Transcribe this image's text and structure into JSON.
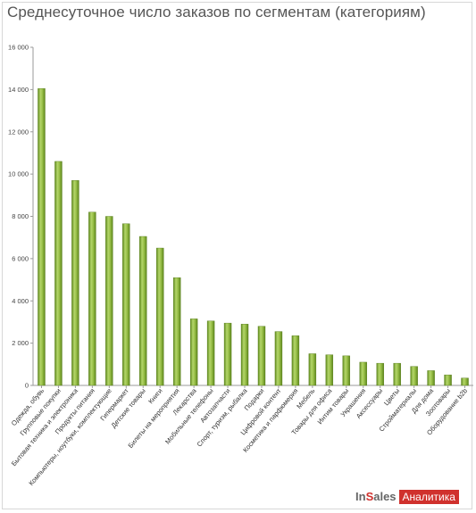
{
  "title": "Среднесуточное число заказов по сегментам (категориям)",
  "logo": {
    "part1": "In",
    "part2": "S",
    "part3": "ales",
    "badge": "Аналитика"
  },
  "chart_data": {
    "type": "bar",
    "title": "Среднесуточное число заказов по сегментам (категориям)",
    "xlabel": "",
    "ylabel": "",
    "ylim": [
      0,
      16000
    ],
    "yticks": [
      0,
      2000,
      4000,
      6000,
      8000,
      10000,
      12000,
      14000,
      16000
    ],
    "ytick_labels": [
      "0",
      "2 000",
      "4 000",
      "6 000",
      "8 000",
      "10 000",
      "12 000",
      "14 000",
      "16 000"
    ],
    "grid": false,
    "bar_color": "#8ab43a",
    "categories": [
      "Одежда, обувь",
      "Групповые покупки",
      "Бытовая техника и электроника",
      "Продукты питания",
      "Компьютеры, ноутбуки, комплектующие",
      "Гипермаркет",
      "Детские товары",
      "Книги",
      "Билеты на мероприятия",
      "Лекарства",
      "Мобильные телефоны",
      "Автозапчасти",
      "Спорт, туризм, рыбалка",
      "Подарки",
      "Цифровой контент",
      "Косметика и парфюмерия",
      "Мебель",
      "Товары для офиса",
      "Интим товары",
      "Украшения",
      "Аксессуары",
      "Цветы",
      "Стройматериалы",
      "Для дома",
      "Зоотовары",
      "Оборудование b2b"
    ],
    "values": [
      14050,
      10600,
      9700,
      8200,
      8000,
      7650,
      7050,
      6500,
      5100,
      3150,
      3050,
      2950,
      2900,
      2800,
      2550,
      2350,
      1500,
      1450,
      1400,
      1100,
      1050,
      1050,
      900,
      700,
      500,
      350
    ]
  }
}
